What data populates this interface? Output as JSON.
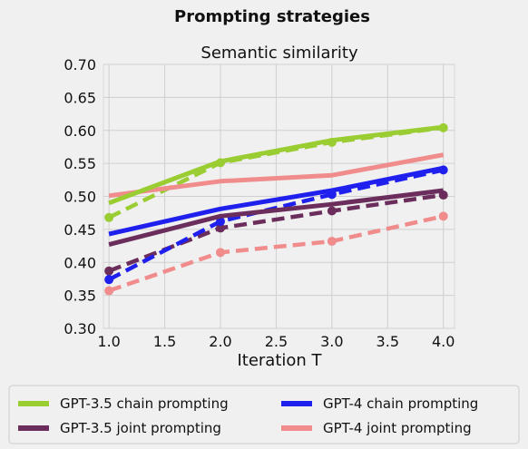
{
  "figure": {
    "suptitle": "Prompting strategies"
  },
  "chart_data": {
    "type": "line",
    "title": "Semantic similarity",
    "xlabel": "Iteration T",
    "ylabel": "",
    "xlim": [
      0.95,
      4.1
    ],
    "ylim": [
      0.3,
      0.7
    ],
    "xticks": [
      "1.0",
      "1.5",
      "2.0",
      "2.5",
      "3.0",
      "3.5",
      "4.0"
    ],
    "yticks": [
      "0.30",
      "0.35",
      "0.40",
      "0.45",
      "0.50",
      "0.55",
      "0.60",
      "0.65",
      "0.70"
    ],
    "grid": true,
    "legend_position": "bottom",
    "lines": [
      {
        "name": "GPT-3.5 chain prompting",
        "color": "#9acd32",
        "style": "solid",
        "x": [
          1.0,
          2.0,
          3.0,
          4.0
        ],
        "y": [
          0.49,
          0.553,
          0.585,
          0.605
        ]
      },
      {
        "name": "GPT-3.5 joint prompting",
        "color": "#6b2d5c",
        "style": "solid",
        "x": [
          1.0,
          2.0,
          3.0,
          4.0
        ],
        "y": [
          0.427,
          0.47,
          0.488,
          0.509
        ]
      },
      {
        "name": "GPT-4 chain prompting",
        "color": "#2020ee",
        "style": "solid",
        "x": [
          1.0,
          2.0,
          3.0,
          4.0
        ],
        "y": [
          0.443,
          0.481,
          0.509,
          0.543
        ]
      },
      {
        "name": "GPT-4 joint prompting",
        "color": "#f08c8c",
        "style": "solid",
        "x": [
          1.0,
          2.0,
          3.0,
          4.0
        ],
        "y": [
          0.501,
          0.523,
          0.532,
          0.563
        ]
      },
      {
        "name": "",
        "color": "#9acd32",
        "style": "dashed",
        "x": [
          1.0,
          2.0,
          3.0,
          4.0
        ],
        "y": [
          0.468,
          0.551,
          0.582,
          0.604
        ]
      },
      {
        "name": "",
        "color": "#6b2d5c",
        "style": "dashed",
        "x": [
          1.0,
          2.0,
          3.0,
          4.0
        ],
        "y": [
          0.387,
          0.452,
          0.478,
          0.502
        ]
      },
      {
        "name": "",
        "color": "#2020ee",
        "style": "dashed",
        "x": [
          1.0,
          2.0,
          3.0,
          4.0
        ],
        "y": [
          0.374,
          0.462,
          0.503,
          0.54
        ]
      },
      {
        "name": "",
        "color": "#f08c8c",
        "style": "dashed",
        "x": [
          1.0,
          2.0,
          3.0,
          4.0
        ],
        "y": [
          0.357,
          0.415,
          0.432,
          0.47
        ]
      }
    ],
    "legend": [
      {
        "label": "GPT-3.5 chain prompting",
        "color": "#9acd32"
      },
      {
        "label": "GPT-3.5 joint prompting",
        "color": "#6b2d5c"
      },
      {
        "label": "GPT-4 chain prompting",
        "color": "#2020ee"
      },
      {
        "label": "GPT-4 joint prompting",
        "color": "#f08c8c"
      }
    ]
  }
}
